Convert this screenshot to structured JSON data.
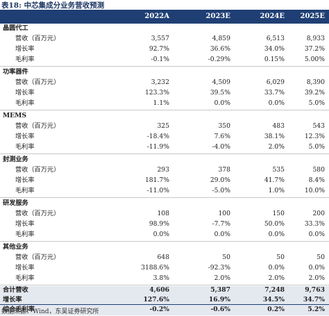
{
  "title": "表18: 中芯集成分业务营收预测",
  "columns": [
    "2022A",
    "2023E",
    "2024E",
    "2025E"
  ],
  "rows": [
    {
      "kind": "section",
      "label": "晶圆代工",
      "values": [
        "",
        "",
        "",
        ""
      ]
    },
    {
      "kind": "metric",
      "label": "营收（百万元）",
      "values": [
        "3,557",
        "4,859",
        "6,513",
        "8,933"
      ]
    },
    {
      "kind": "metric",
      "label": "增长率",
      "values": [
        "92.7%",
        "36.6%",
        "34.0%",
        "37.2%"
      ]
    },
    {
      "kind": "metric",
      "label": "毛利率",
      "values": [
        "-0.1%",
        "-0.29%",
        "0.15%",
        "5.00%"
      ]
    },
    {
      "kind": "section",
      "label": "功率器件",
      "values": [
        "",
        "",
        "",
        ""
      ]
    },
    {
      "kind": "metric",
      "label": "营收（百万元）",
      "values": [
        "3,232",
        "4,509",
        "6,029",
        "8,390"
      ]
    },
    {
      "kind": "metric",
      "label": "增长率",
      "values": [
        "123.3%",
        "39.5%",
        "33.7%",
        "39.2%"
      ]
    },
    {
      "kind": "metric",
      "label": "毛利率",
      "values": [
        "1.1%",
        "0.0%",
        "0.0%",
        "5.0%"
      ]
    },
    {
      "kind": "section",
      "label": "MEMS",
      "values": [
        "",
        "",
        "",
        ""
      ]
    },
    {
      "kind": "metric",
      "label": "营收（百万元）",
      "values": [
        "325",
        "350",
        "483",
        "543"
      ]
    },
    {
      "kind": "metric",
      "label": "增长率",
      "values": [
        "-18.4%",
        "7.6%",
        "38.1%",
        "12.3%"
      ]
    },
    {
      "kind": "metric",
      "label": "毛利率",
      "values": [
        "-11.9%",
        "-4.0%",
        "2.0%",
        "5.0%"
      ]
    },
    {
      "kind": "section",
      "label": "封测业务",
      "values": [
        "",
        "",
        "",
        ""
      ]
    },
    {
      "kind": "metric",
      "label": "营收（百万元）",
      "values": [
        "293",
        "378",
        "535",
        "580"
      ]
    },
    {
      "kind": "metric",
      "label": "增长率",
      "values": [
        "181.7%",
        "29.0%",
        "41.7%",
        "8.4%"
      ]
    },
    {
      "kind": "metric",
      "label": "毛利率",
      "values": [
        "-11.0%",
        "-5.0%",
        "1.0%",
        "10.0%"
      ]
    },
    {
      "kind": "section",
      "label": "研发服务",
      "values": [
        "",
        "",
        "",
        ""
      ]
    },
    {
      "kind": "metric",
      "label": "营收（百万元）",
      "values": [
        "108",
        "100",
        "150",
        "200"
      ]
    },
    {
      "kind": "metric",
      "label": "增长率",
      "values": [
        "98.9%",
        "-7.7%",
        "50.0%",
        "33.3%"
      ]
    },
    {
      "kind": "metric",
      "label": "毛利率",
      "values": [
        "0.0%",
        "0.0%",
        "0.0%",
        "0.0%"
      ]
    },
    {
      "kind": "section",
      "label": "其他业务",
      "values": [
        "",
        "",
        "",
        ""
      ]
    },
    {
      "kind": "metric",
      "label": "营收（百万元）",
      "values": [
        "648",
        "50",
        "50",
        "50"
      ]
    },
    {
      "kind": "metric",
      "label": "增长率",
      "values": [
        "3188.6%",
        "-92.3%",
        "0.0%",
        "0.0%"
      ]
    },
    {
      "kind": "metric",
      "label": "毛利率",
      "values": [
        "3.8%",
        "2.0%",
        "2.0%",
        "2.0%"
      ]
    },
    {
      "kind": "total",
      "label": "合计营收",
      "values": [
        "4,606",
        "5,387",
        "7,248",
        "9,763"
      ]
    },
    {
      "kind": "total",
      "label": "增长率",
      "values": [
        "127.6%",
        "16.9%",
        "34.5%",
        "34.7%"
      ]
    },
    {
      "kind": "total",
      "label": "综合毛利率",
      "values": [
        "-0.2%",
        "-0.6%",
        "0.2%",
        "5.2%"
      ]
    }
  ],
  "source": "数据来源：Wind，东吴证券研究所",
  "colors": {
    "header_bg": "#1f3f74",
    "title": "#1f3864",
    "totals_bg": "#e4e8ef"
  }
}
